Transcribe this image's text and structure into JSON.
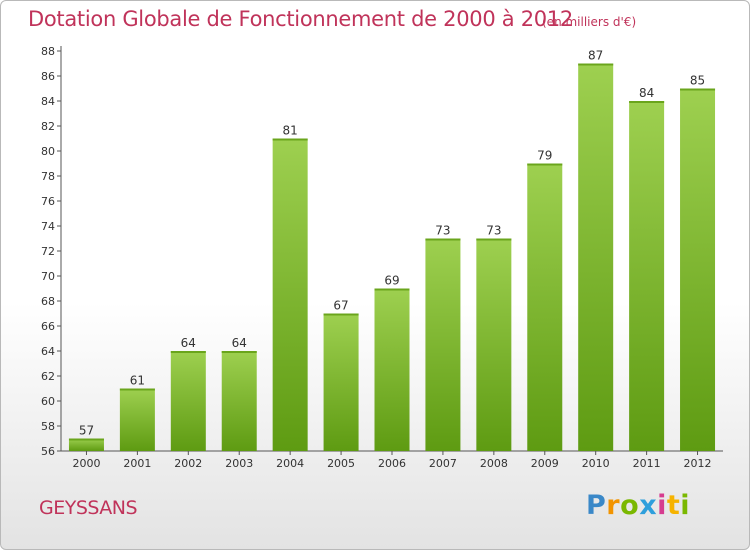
{
  "chart_data": {
    "type": "bar",
    "title": "Dotation Globale de Fonctionnement de 2000 à 2012",
    "subtitle": "(en milliers d'€)",
    "categories": [
      "2000",
      "2001",
      "2002",
      "2003",
      "2004",
      "2005",
      "2006",
      "2007",
      "2008",
      "2009",
      "2010",
      "2011",
      "2012"
    ],
    "values": [
      57,
      61,
      64,
      64,
      81,
      67,
      69,
      73,
      73,
      79,
      87,
      84,
      85
    ],
    "xlabel": "",
    "ylabel": "",
    "ylim": [
      56,
      88
    ],
    "yticks": [
      56,
      58,
      60,
      62,
      64,
      66,
      68,
      70,
      72,
      74,
      76,
      78,
      80,
      82,
      84,
      86,
      88
    ],
    "grid": false,
    "legend": "none",
    "colors": {
      "bar_top": "#9ed050",
      "bar_bottom": "#5e9b12",
      "title": "#c0335a"
    }
  },
  "commune": "GEYSSANS",
  "logo": {
    "p": "P",
    "r": "r",
    "o": "o",
    "x": "x",
    "i1": "i",
    "t": "t",
    "i2": "i"
  }
}
